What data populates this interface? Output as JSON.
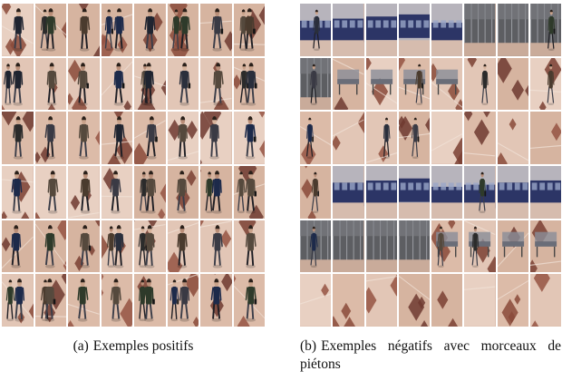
{
  "figure": {
    "panels": [
      {
        "id": "a",
        "tag": "(a)",
        "caption": "Exemples positifs",
        "content": "pedestrian",
        "rows": 6,
        "cols": 8
      },
      {
        "id": "b",
        "tag": "(b)",
        "caption": "Exemples négatifs avec morceaux de piétons",
        "content": "background",
        "rows": 6,
        "cols": 8
      }
    ]
  }
}
